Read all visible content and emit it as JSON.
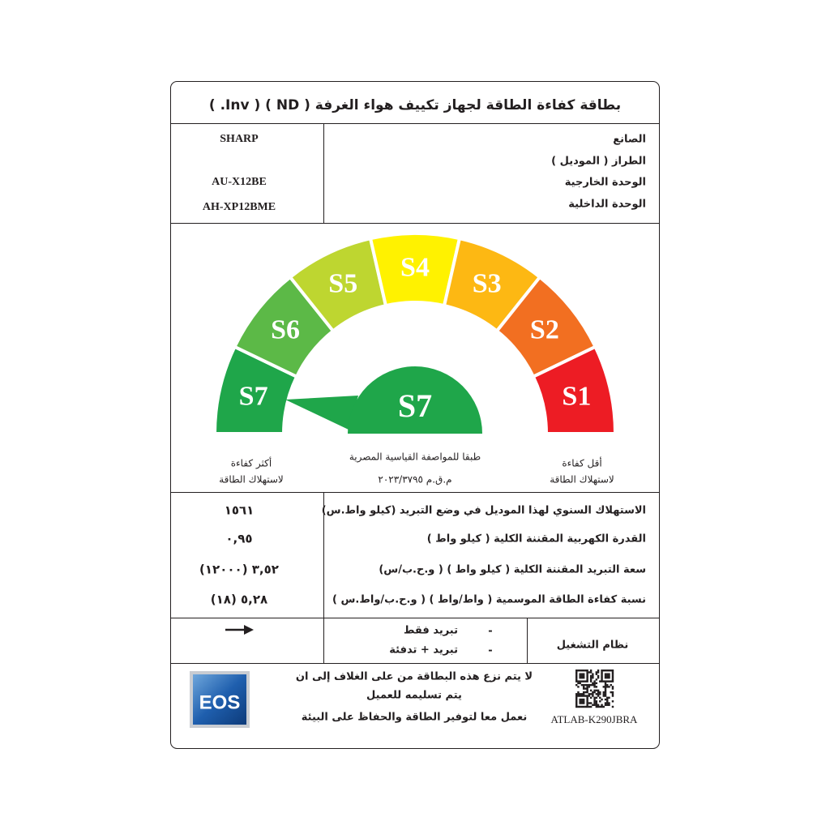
{
  "header": {
    "title": "بطاقة كفاءة الطاقة لجهاز تكييف هواء الغرفة ( ND ) ( Inv. )"
  },
  "identity": {
    "labels": [
      "الصانع",
      "الطراز ( الموديل )",
      "الوحدة الخارجية",
      "الوحدة الداخلية"
    ],
    "manufacturer": "SHARP",
    "outdoor_unit": "AU-X12BE",
    "indoor_unit": "AH-XP12BME"
  },
  "gauge": {
    "levels": [
      {
        "label": "S7",
        "color": "#1fa64a"
      },
      {
        "label": "S6",
        "color": "#5cb947"
      },
      {
        "label": "S5",
        "color": "#bed630"
      },
      {
        "label": "S4",
        "color": "#fff200"
      },
      {
        "label": "S3",
        "color": "#fdb813"
      },
      {
        "label": "S2",
        "color": "#f26f21"
      },
      {
        "label": "S1",
        "color": "#ed1c24"
      }
    ],
    "rating": "S7",
    "rating_color": "#1fa64a",
    "most_efficient": [
      "أكثر كفاءة",
      "لاستهلاك الطاقة"
    ],
    "standard": [
      "طبقا للمواصفة القياسية المصرية",
      "م.ق.م ٢٠٢٣/٣٧٩٥"
    ],
    "least_efficient": [
      "أقل كفاءة",
      "لاستهلاك الطاقة"
    ]
  },
  "specs": {
    "rows": [
      [
        "الاستهلاك السنوي لهذا الموديل في وضع التبريد (كيلو واط.س)",
        "١٥٦١"
      ],
      [
        "القدرة الكهربية المقننة الكلية ( كيلو واط )",
        "٠,٩٥"
      ],
      [
        "سعة التبريد المقننة الكلية ( كيلو واط ) ( و.ح.ب/س)",
        "٣,٥٢ (١٢٠٠٠)"
      ],
      [
        "نسبة كفاءة الطاقة الموسمية ( واط/واط ) ( و.ح.ب/واط.س )",
        "٥,٢٨ (١٨)"
      ]
    ]
  },
  "operation": {
    "label": "نظام التشغيل",
    "marker": "-",
    "options": [
      "تبريد فقط",
      "تبريد + تدفئة"
    ]
  },
  "footer": {
    "logo": "EOS",
    "notice": [
      "لا يتم نزع هذه البطاقة من على الغلاف إلى ان",
      "يتم تسليمه للعميل",
      "نعمل معا لتوفير الطاقة والحفاظ على البيئة"
    ],
    "code": "ATLAB-K290JBRA"
  }
}
